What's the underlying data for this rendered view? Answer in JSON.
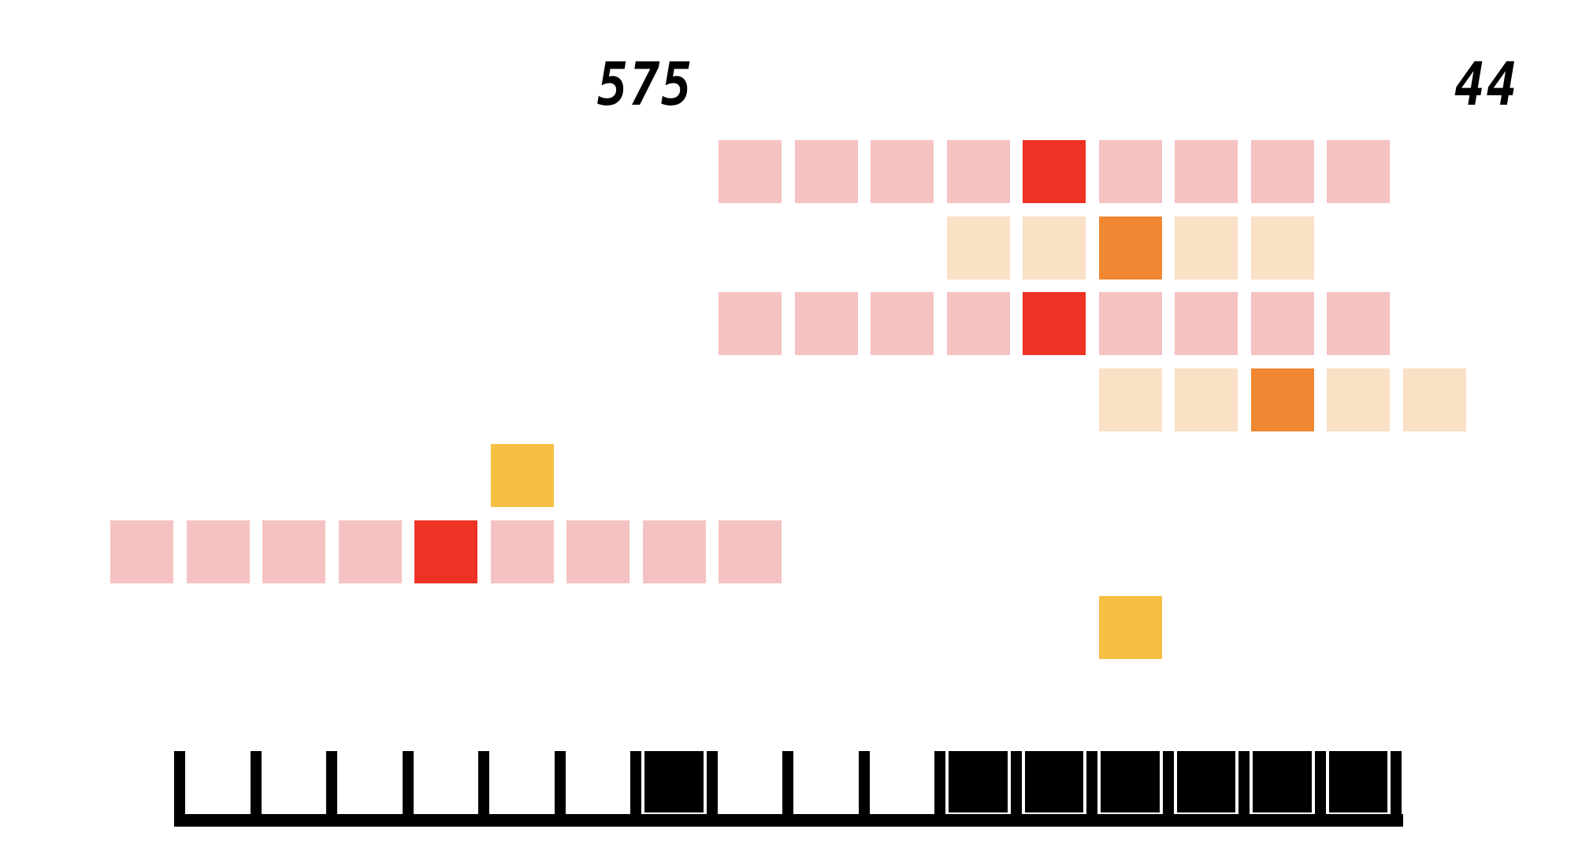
{
  "scores": {
    "left": "575",
    "right": "44"
  },
  "colors": {
    "pink": "#f5c2c2",
    "red": "#ee3224",
    "peach": "#fae0c5",
    "orange": "#f08733",
    "yellow": "#f5c042",
    "black": "#000000"
  },
  "board": [
    {
      "row": 0,
      "cols": [
        8,
        16
      ],
      "highlight": 12,
      "base": "pink",
      "accent": "red"
    },
    {
      "row": 1,
      "cols": [
        11,
        15
      ],
      "highlight": 13,
      "base": "peach",
      "accent": "orange"
    },
    {
      "row": 2,
      "cols": [
        8,
        16
      ],
      "highlight": 12,
      "base": "pink",
      "accent": "red"
    },
    {
      "row": 3,
      "cols": [
        13,
        17
      ],
      "highlight": 15,
      "base": "peach",
      "accent": "orange"
    },
    {
      "row": 4,
      "cols": [
        5,
        5
      ],
      "highlight": 5,
      "base": "yellow",
      "accent": "yellow"
    },
    {
      "row": 5,
      "cols": [
        0,
        8
      ],
      "highlight": 4,
      "base": "pink",
      "accent": "red"
    },
    {
      "row": 6,
      "cols": [
        13,
        13
      ],
      "highlight": 13,
      "base": "yellow",
      "accent": "yellow"
    }
  ],
  "progress_bar": {
    "slots": 16,
    "filled": [
      6,
      10,
      11,
      12,
      13,
      14,
      15
    ]
  }
}
